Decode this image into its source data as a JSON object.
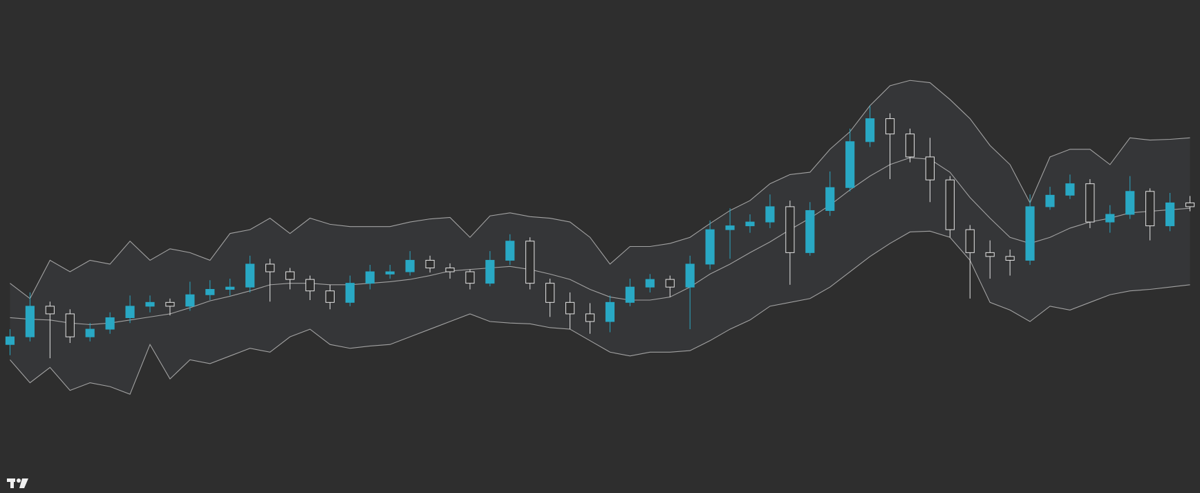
{
  "chart_data": {
    "type": "candlestick",
    "ylim": [
      0,
      644
    ],
    "up_color": "#29a8c4",
    "down_color": "#e6e6e6",
    "band_color": "#a3a3a3",
    "band_fill": "#353638",
    "open": [
      194,
      204,
      244,
      234,
      204,
      214,
      229,
      244,
      249,
      244,
      259,
      266,
      269,
      299,
      289,
      279,
      264,
      249,
      274,
      286,
      289,
      304,
      294,
      289,
      274,
      304,
      329,
      274,
      249,
      234,
      224,
      249,
      269,
      279,
      269,
      299,
      344,
      349,
      354,
      374,
      314,
      369,
      399,
      459,
      489,
      469,
      439,
      409,
      344,
      314,
      309,
      304,
      374,
      389,
      404,
      354,
      364,
      394,
      349,
      379
    ],
    "high": [
      214,
      262,
      250,
      240,
      222,
      236,
      258,
      258,
      254,
      276,
      278,
      280,
      310,
      306,
      294,
      284,
      272,
      284,
      298,
      298,
      316,
      310,
      300,
      292,
      316,
      338,
      334,
      280,
      262,
      248,
      258,
      280,
      286,
      284,
      310,
      356,
      372,
      364,
      390,
      382,
      380,
      420,
      476,
      506,
      496,
      476,
      464,
      414,
      350,
      330,
      318,
      390,
      400,
      416,
      410,
      376,
      414,
      398,
      392,
      388
    ],
    "low": [
      180,
      198,
      176,
      196,
      198,
      208,
      222,
      236,
      232,
      238,
      252,
      258,
      262,
      250,
      266,
      252,
      240,
      244,
      266,
      280,
      284,
      288,
      280,
      266,
      270,
      298,
      266,
      230,
      214,
      208,
      210,
      244,
      262,
      256,
      214,
      292,
      306,
      340,
      346,
      272,
      310,
      362,
      394,
      452,
      410,
      432,
      380,
      334,
      254,
      280,
      284,
      298,
      370,
      384,
      346,
      340,
      358,
      330,
      342,
      368
    ],
    "close": [
      204,
      244,
      234,
      204,
      214,
      229,
      244,
      249,
      244,
      259,
      266,
      269,
      299,
      289,
      279,
      264,
      249,
      274,
      289,
      289,
      304,
      294,
      289,
      274,
      304,
      329,
      274,
      249,
      234,
      224,
      249,
      269,
      279,
      269,
      299,
      344,
      349,
      354,
      374,
      314,
      369,
      399,
      459,
      489,
      469,
      439,
      409,
      344,
      314,
      309,
      304,
      374,
      389,
      404,
      354,
      364,
      394,
      349,
      379,
      374
    ],
    "bands": {
      "upper": [
        274,
        254,
        304,
        289,
        304,
        299,
        329,
        304,
        319,
        314,
        304,
        339,
        344,
        359,
        339,
        359,
        351,
        348,
        348,
        348,
        354,
        358,
        360,
        334,
        362,
        366,
        361,
        359,
        354,
        334,
        299,
        322,
        322,
        326,
        334,
        352,
        369,
        382,
        404,
        416,
        419,
        449,
        472,
        506,
        532,
        539,
        536,
        514,
        489,
        454,
        429,
        379,
        439,
        449,
        449,
        429,
        464,
        461,
        462,
        464
      ],
      "middle": [
        229,
        227,
        226,
        222,
        220,
        222,
        226,
        230,
        234,
        242,
        251,
        257,
        264,
        272,
        274,
        274,
        272,
        272,
        274,
        276,
        279,
        284,
        290,
        292,
        294,
        296,
        292,
        286,
        279,
        266,
        256,
        252,
        252,
        256,
        269,
        286,
        299,
        314,
        328,
        344,
        359,
        376,
        396,
        414,
        429,
        438,
        436,
        419,
        386,
        359,
        334,
        326,
        334,
        346,
        354,
        359,
        366,
        368,
        370,
        372
      ],
      "lower": [
        174,
        144,
        164,
        134,
        144,
        139,
        129,
        194,
        149,
        174,
        169,
        179,
        189,
        184,
        204,
        214,
        194,
        189,
        192,
        194,
        204,
        214,
        224,
        234,
        224,
        222,
        221,
        216,
        214,
        199,
        184,
        179,
        184,
        184,
        186,
        199,
        214,
        226,
        244,
        249,
        254,
        269,
        289,
        309,
        326,
        341,
        342,
        334,
        304,
        249,
        239,
        224,
        244,
        239,
        249,
        259,
        264,
        266,
        269,
        272
      ]
    }
  }
}
